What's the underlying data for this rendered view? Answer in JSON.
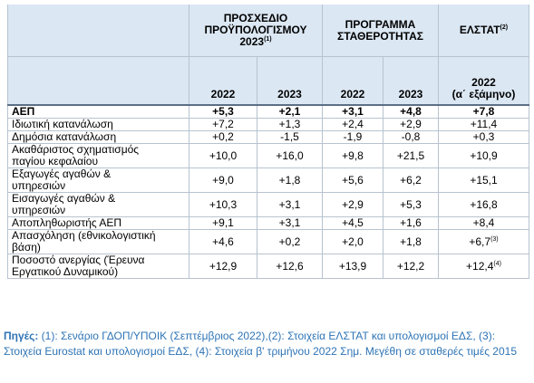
{
  "header": {
    "groups": [
      {
        "text": "ΠΡΟΣΧΕΔΙΟ\nΠΡΟΫΠΟΛΟΓΙΣΜΟΥ\n2023",
        "note": "(1)",
        "span": 2
      },
      {
        "text": "ΠΡΟΓΡΑΜΜΑ\nΣΤΑΘΕΡΟΤΗΤΑΣ",
        "span": 2
      },
      {
        "text": "ΕΛΣΤΑΤ",
        "note": "(2)",
        "span": 1
      }
    ],
    "years": [
      "2022",
      "2023",
      "2022",
      "2023",
      "2022\n(α΄ εξάμηνο)"
    ]
  },
  "table": {
    "rows": [
      {
        "label": "ΑΕΠ",
        "bold": true,
        "cells": [
          "+5,3",
          "+2,1",
          "+3,1",
          "+4,8",
          "+7,8"
        ]
      },
      {
        "label": "Ιδιωτική κατανάλωση",
        "cells": [
          "+7,2",
          "+1,3",
          "+2,4",
          "+2,9",
          "+11,4"
        ]
      },
      {
        "label": "Δημόσια κατανάλωση",
        "cells": [
          "+0,2",
          "-1,5",
          "-1,9",
          "-0,8",
          "+0,3"
        ]
      },
      {
        "label": "Ακαθάριστος σχηματισμός\nπαγίου κεφαλαίου",
        "cells": [
          "+10,0",
          "+16,0",
          "+9,8",
          "+21,5",
          "+10,9"
        ]
      },
      {
        "label": "Εξαγωγές αγαθών &\nυπηρεσιών",
        "cells": [
          "+9,0",
          "+1,8",
          "+5,6",
          "+6,2",
          "+15,1"
        ]
      },
      {
        "label": "Εισαγωγές αγαθών &\nυπηρεσιών",
        "cells": [
          "+10,3",
          "+3,1",
          "+2,9",
          "+5,3",
          "+16,8"
        ]
      },
      {
        "label": "Αποπληθωριστής ΑΕΠ",
        "cells": [
          "+9,1",
          "+3,1",
          "+4,5",
          "+1,6",
          "+8,4"
        ]
      },
      {
        "label": "Απασχόληση (εθνικολογιστική\nβάση)",
        "cells": [
          "+4,6",
          "+0,2",
          "+2,0",
          "+1,8",
          {
            "text": "+6,7",
            "note": "(3)"
          }
        ]
      },
      {
        "label": "Ποσοστό ανεργίας (Έρευνα\nΕργατικού Δυναμικού)",
        "cells": [
          "+12,9",
          "+12,6",
          "+13,9",
          "+12,2",
          {
            "text": "+12,4",
            "note": "(4)"
          }
        ]
      }
    ]
  },
  "footnote": {
    "lead": "Πηγές:",
    "text": "(1): Σενάριο ΓΔΟΠ/ΥΠΟΙΚ (Σεπτέμβριος 2022),(2): Στοιχεία ΕΛΣΤΑΤ και υπολογισμοί ΕΔΣ, (3): Στοιχεία Eurostat και υπολογισμοί ΕΔΣ, (4): Στοιχεία β' τριμήνου 2022 Σημ. Μεγέθη σε σταθερές τιμές 2015"
  }
}
